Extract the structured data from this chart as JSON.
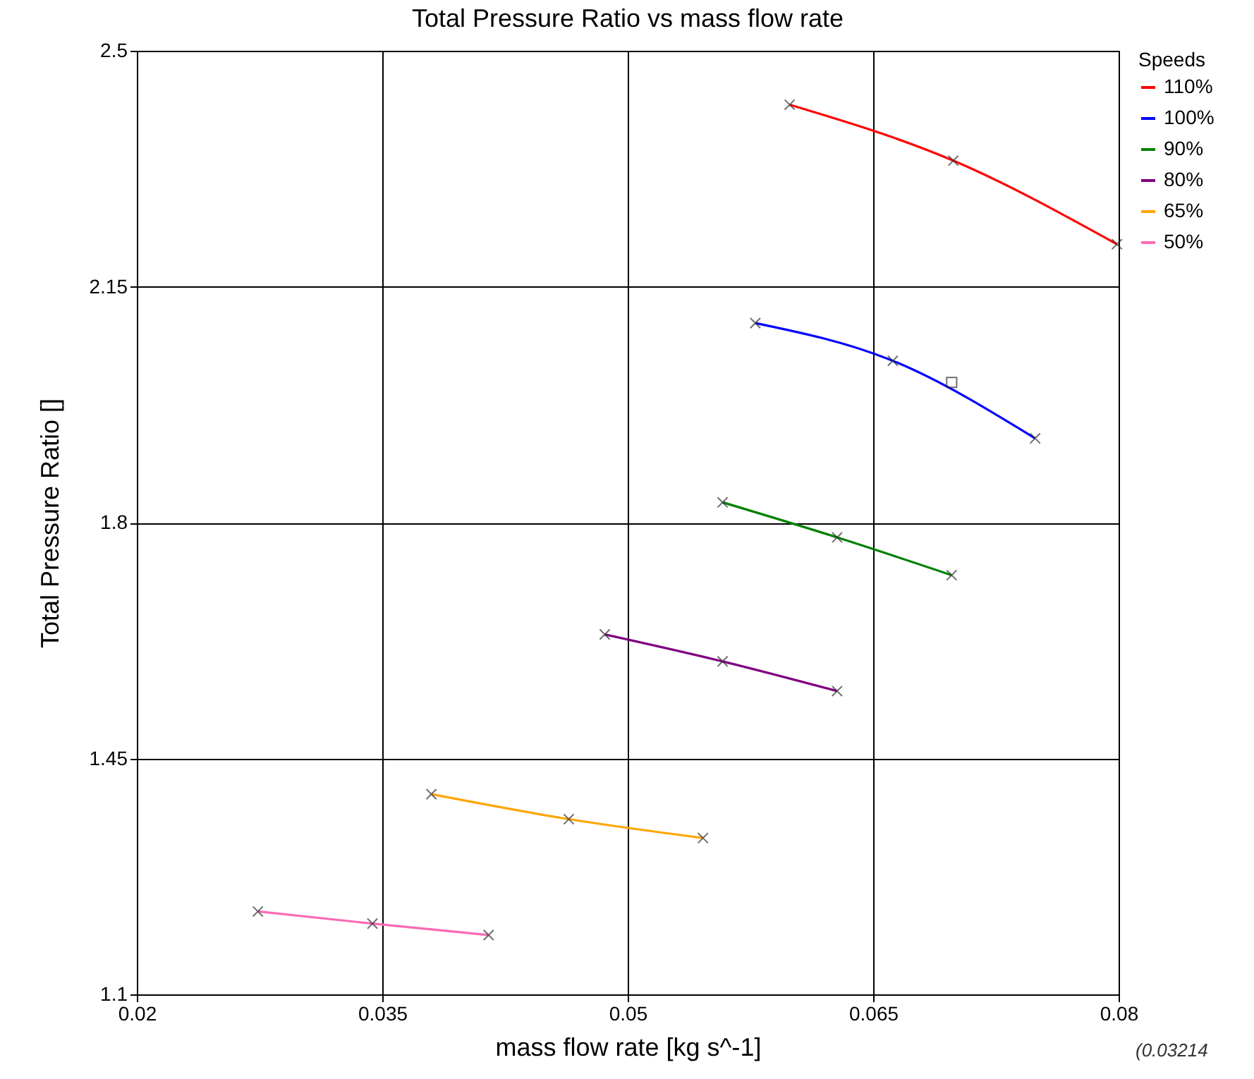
{
  "chart_data": {
    "type": "line",
    "title": "Total Pressure Ratio vs mass flow rate",
    "xlabel": "mass flow rate [kg s^-1]",
    "ylabel": "Total Pressure Ratio []",
    "legend_title": "Speeds",
    "legend": "top right",
    "grid": true,
    "marker": "cross",
    "line_style": "solid",
    "xlim": [
      0.02,
      0.08
    ],
    "xticks": [
      0.02,
      0.035,
      0.05,
      0.065,
      0.08
    ],
    "ylim": [
      1.1,
      2.5
    ],
    "yticks": [
      1.1,
      1.45,
      1.8,
      2.15,
      2.5
    ],
    "annotations": [
      "(0.03214"
    ],
    "series": [
      {
        "name": "110%",
        "color": "#ff0000",
        "x": [
          0.0599,
          0.0699,
          0.0799
        ],
        "values": [
          2.42,
          2.337,
          2.213
        ]
      },
      {
        "name": "100%",
        "color": "#0000ff",
        "x": [
          0.0578,
          0.0662,
          0.0749
        ],
        "values": [
          2.096,
          2.04,
          1.925
        ]
      },
      {
        "name": "90%",
        "color": "#008000",
        "x": [
          0.0558,
          0.0628,
          0.0698
        ],
        "values": [
          1.83,
          1.778,
          1.722
        ]
      },
      {
        "name": "80%",
        "color": "#800080",
        "x": [
          0.0486,
          0.0558,
          0.0628
        ],
        "values": [
          1.634,
          1.594,
          1.55
        ]
      },
      {
        "name": "65%",
        "color": "#ffa500",
        "x": [
          0.038,
          0.0464,
          0.0546
        ],
        "values": [
          1.397,
          1.36,
          1.332
        ]
      },
      {
        "name": "50%",
        "color": "#ff69b4",
        "x": [
          0.0274,
          0.0344,
          0.0415
        ],
        "values": [
          1.223,
          1.205,
          1.188
        ]
      },
      {
        "type": "scatter",
        "marker": "square",
        "color": "#333333",
        "x": [
          0.0698
        ],
        "values": [
          2.008
        ]
      }
    ]
  }
}
